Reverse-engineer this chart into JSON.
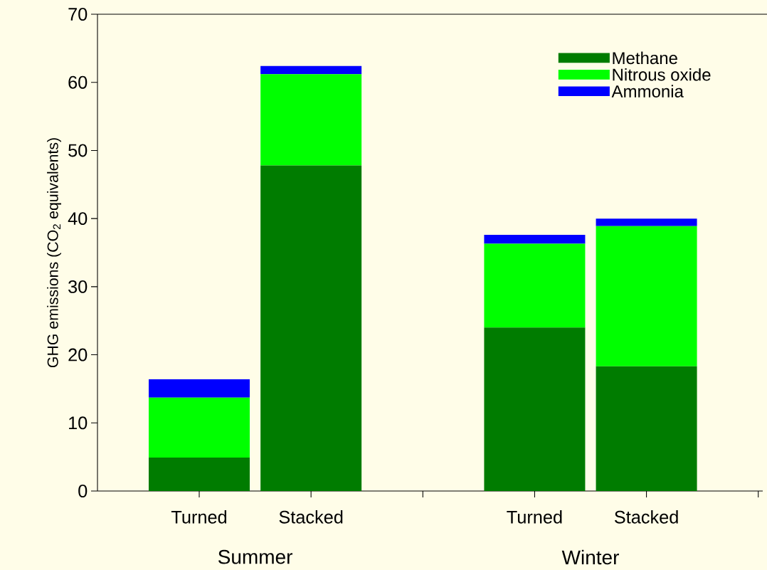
{
  "chart_data": {
    "type": "bar",
    "stacked": true,
    "ylabel": "GHG emissions (CO$_{2}$ equivalents)",
    "categories": [
      "Turned",
      "Stacked",
      "Turned",
      "Stacked"
    ],
    "annotations": [
      "Summer",
      "Winter"
    ],
    "series": [
      {
        "name": "Methane",
        "color": "#007c00",
        "values": [
          4.9,
          47.8,
          24.0,
          18.3
        ]
      },
      {
        "name": "Nitrous oxide",
        "color": "#00ff00",
        "values": [
          8.8,
          13.4,
          12.3,
          20.6
        ]
      },
      {
        "name": "Ammonia",
        "color": "#0000ff",
        "values": [
          2.7,
          1.2,
          1.3,
          1.1
        ]
      }
    ],
    "ylim": [
      0,
      70
    ],
    "yticks": [
      0,
      10,
      20,
      30,
      40,
      50,
      60,
      70
    ],
    "grid": false,
    "legend": "top right"
  }
}
